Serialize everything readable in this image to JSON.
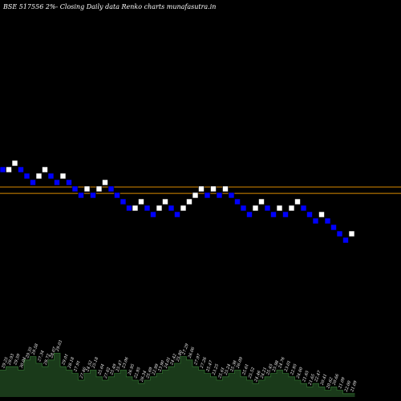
{
  "chart_data": {
    "type": "renko",
    "title": "BSE 517556  2%-  Closing Daily data  Renko  charts munafasutra.in",
    "colors": {
      "background": "#000000",
      "up_brick": "#ffffff",
      "down_brick": "#0000ff",
      "reference_line": "#d98a00",
      "volume_area": "#1a3a1a",
      "volume_outline": "#2e6b2e"
    },
    "reference_levels": [
      27.6,
      26.9
    ],
    "bricks": [
      {
        "dir": "down",
        "level": 29.8
      },
      {
        "dir": "up",
        "level": 29.8
      },
      {
        "dir": "up",
        "level": 30.5
      },
      {
        "dir": "down",
        "level": 29.8
      },
      {
        "dir": "down",
        "level": 29.1
      },
      {
        "dir": "down",
        "level": 28.4
      },
      {
        "dir": "up",
        "level": 29.1
      },
      {
        "dir": "up",
        "level": 29.8
      },
      {
        "dir": "down",
        "level": 29.1
      },
      {
        "dir": "down",
        "level": 28.4
      },
      {
        "dir": "up",
        "level": 29.1
      },
      {
        "dir": "down",
        "level": 28.4
      },
      {
        "dir": "down",
        "level": 27.7
      },
      {
        "dir": "down",
        "level": 27.0
      },
      {
        "dir": "up",
        "level": 27.7
      },
      {
        "dir": "down",
        "level": 27.0
      },
      {
        "dir": "up",
        "level": 27.7
      },
      {
        "dir": "up",
        "level": 28.4
      },
      {
        "dir": "down",
        "level": 27.7
      },
      {
        "dir": "down",
        "level": 27.0
      },
      {
        "dir": "down",
        "level": 26.3
      },
      {
        "dir": "down",
        "level": 25.6
      },
      {
        "dir": "up",
        "level": 25.6
      },
      {
        "dir": "up",
        "level": 26.3
      },
      {
        "dir": "down",
        "level": 25.6
      },
      {
        "dir": "down",
        "level": 24.9
      },
      {
        "dir": "up",
        "level": 25.6
      },
      {
        "dir": "up",
        "level": 26.3
      },
      {
        "dir": "down",
        "level": 25.6
      },
      {
        "dir": "down",
        "level": 24.9
      },
      {
        "dir": "up",
        "level": 25.6
      },
      {
        "dir": "up",
        "level": 26.3
      },
      {
        "dir": "up",
        "level": 27.0
      },
      {
        "dir": "up",
        "level": 27.7
      },
      {
        "dir": "down",
        "level": 27.0
      },
      {
        "dir": "up",
        "level": 27.7
      },
      {
        "dir": "down",
        "level": 27.0
      },
      {
        "dir": "up",
        "level": 27.7
      },
      {
        "dir": "down",
        "level": 27.0
      },
      {
        "dir": "down",
        "level": 26.3
      },
      {
        "dir": "down",
        "level": 25.6
      },
      {
        "dir": "down",
        "level": 24.9
      },
      {
        "dir": "up",
        "level": 25.6
      },
      {
        "dir": "up",
        "level": 26.3
      },
      {
        "dir": "down",
        "level": 25.6
      },
      {
        "dir": "down",
        "level": 24.9
      },
      {
        "dir": "up",
        "level": 25.6
      },
      {
        "dir": "down",
        "level": 24.9
      },
      {
        "dir": "up",
        "level": 25.6
      },
      {
        "dir": "up",
        "level": 26.3
      },
      {
        "dir": "down",
        "level": 25.6
      },
      {
        "dir": "down",
        "level": 24.9
      },
      {
        "dir": "down",
        "level": 24.2
      },
      {
        "dir": "up",
        "level": 24.9
      },
      {
        "dir": "down",
        "level": 24.2
      },
      {
        "dir": "down",
        "level": 23.5
      },
      {
        "dir": "down",
        "level": 22.8
      },
      {
        "dir": "down",
        "level": 22.1
      },
      {
        "dir": "up",
        "level": 22.8
      }
    ],
    "volume": [
      8,
      9,
      9,
      8,
      11,
      12,
      10,
      9,
      11,
      13,
      9,
      8,
      7,
      5,
      7,
      8,
      6,
      5,
      6,
      7,
      8,
      6,
      5,
      4,
      5,
      6,
      7,
      8,
      9,
      10,
      12,
      11,
      9,
      8,
      7,
      6,
      5,
      6,
      7,
      8,
      6,
      5,
      4,
      5,
      6,
      7,
      8,
      7,
      6,
      5,
      4,
      3,
      4,
      3,
      2,
      3,
      2,
      1,
      1
    ],
    "volume_labels": [
      "29.25",
      "29.93",
      "29.59",
      "30.04",
      "29.35",
      "29.58",
      "27.34",
      "29.72",
      "28.07",
      "29.03",
      "29.01",
      "28.18",
      "27.91",
      "27.46",
      "24.52",
      "25.18",
      "25.64",
      "27.02",
      "25.49",
      "25.47",
      "23.06",
      "26.95",
      "22.95",
      "26.34",
      "25.69",
      "22.99",
      "23.90",
      "24.01",
      "24.42",
      "25.80",
      "27.29",
      "26.06",
      "27.97",
      "27.26",
      "25.47",
      "23.25",
      "25.61",
      "25.24",
      "25.38",
      "26.09",
      "25.61",
      "25.52",
      "24.46",
      "24.21",
      "25.45",
      "25.98",
      "24.76",
      "23.01",
      "22.95",
      "24.00",
      "21.65",
      "21.65",
      "22.47",
      "20.41",
      "20.62",
      "20.66",
      "21.09",
      "22.00",
      "21.09"
    ]
  }
}
